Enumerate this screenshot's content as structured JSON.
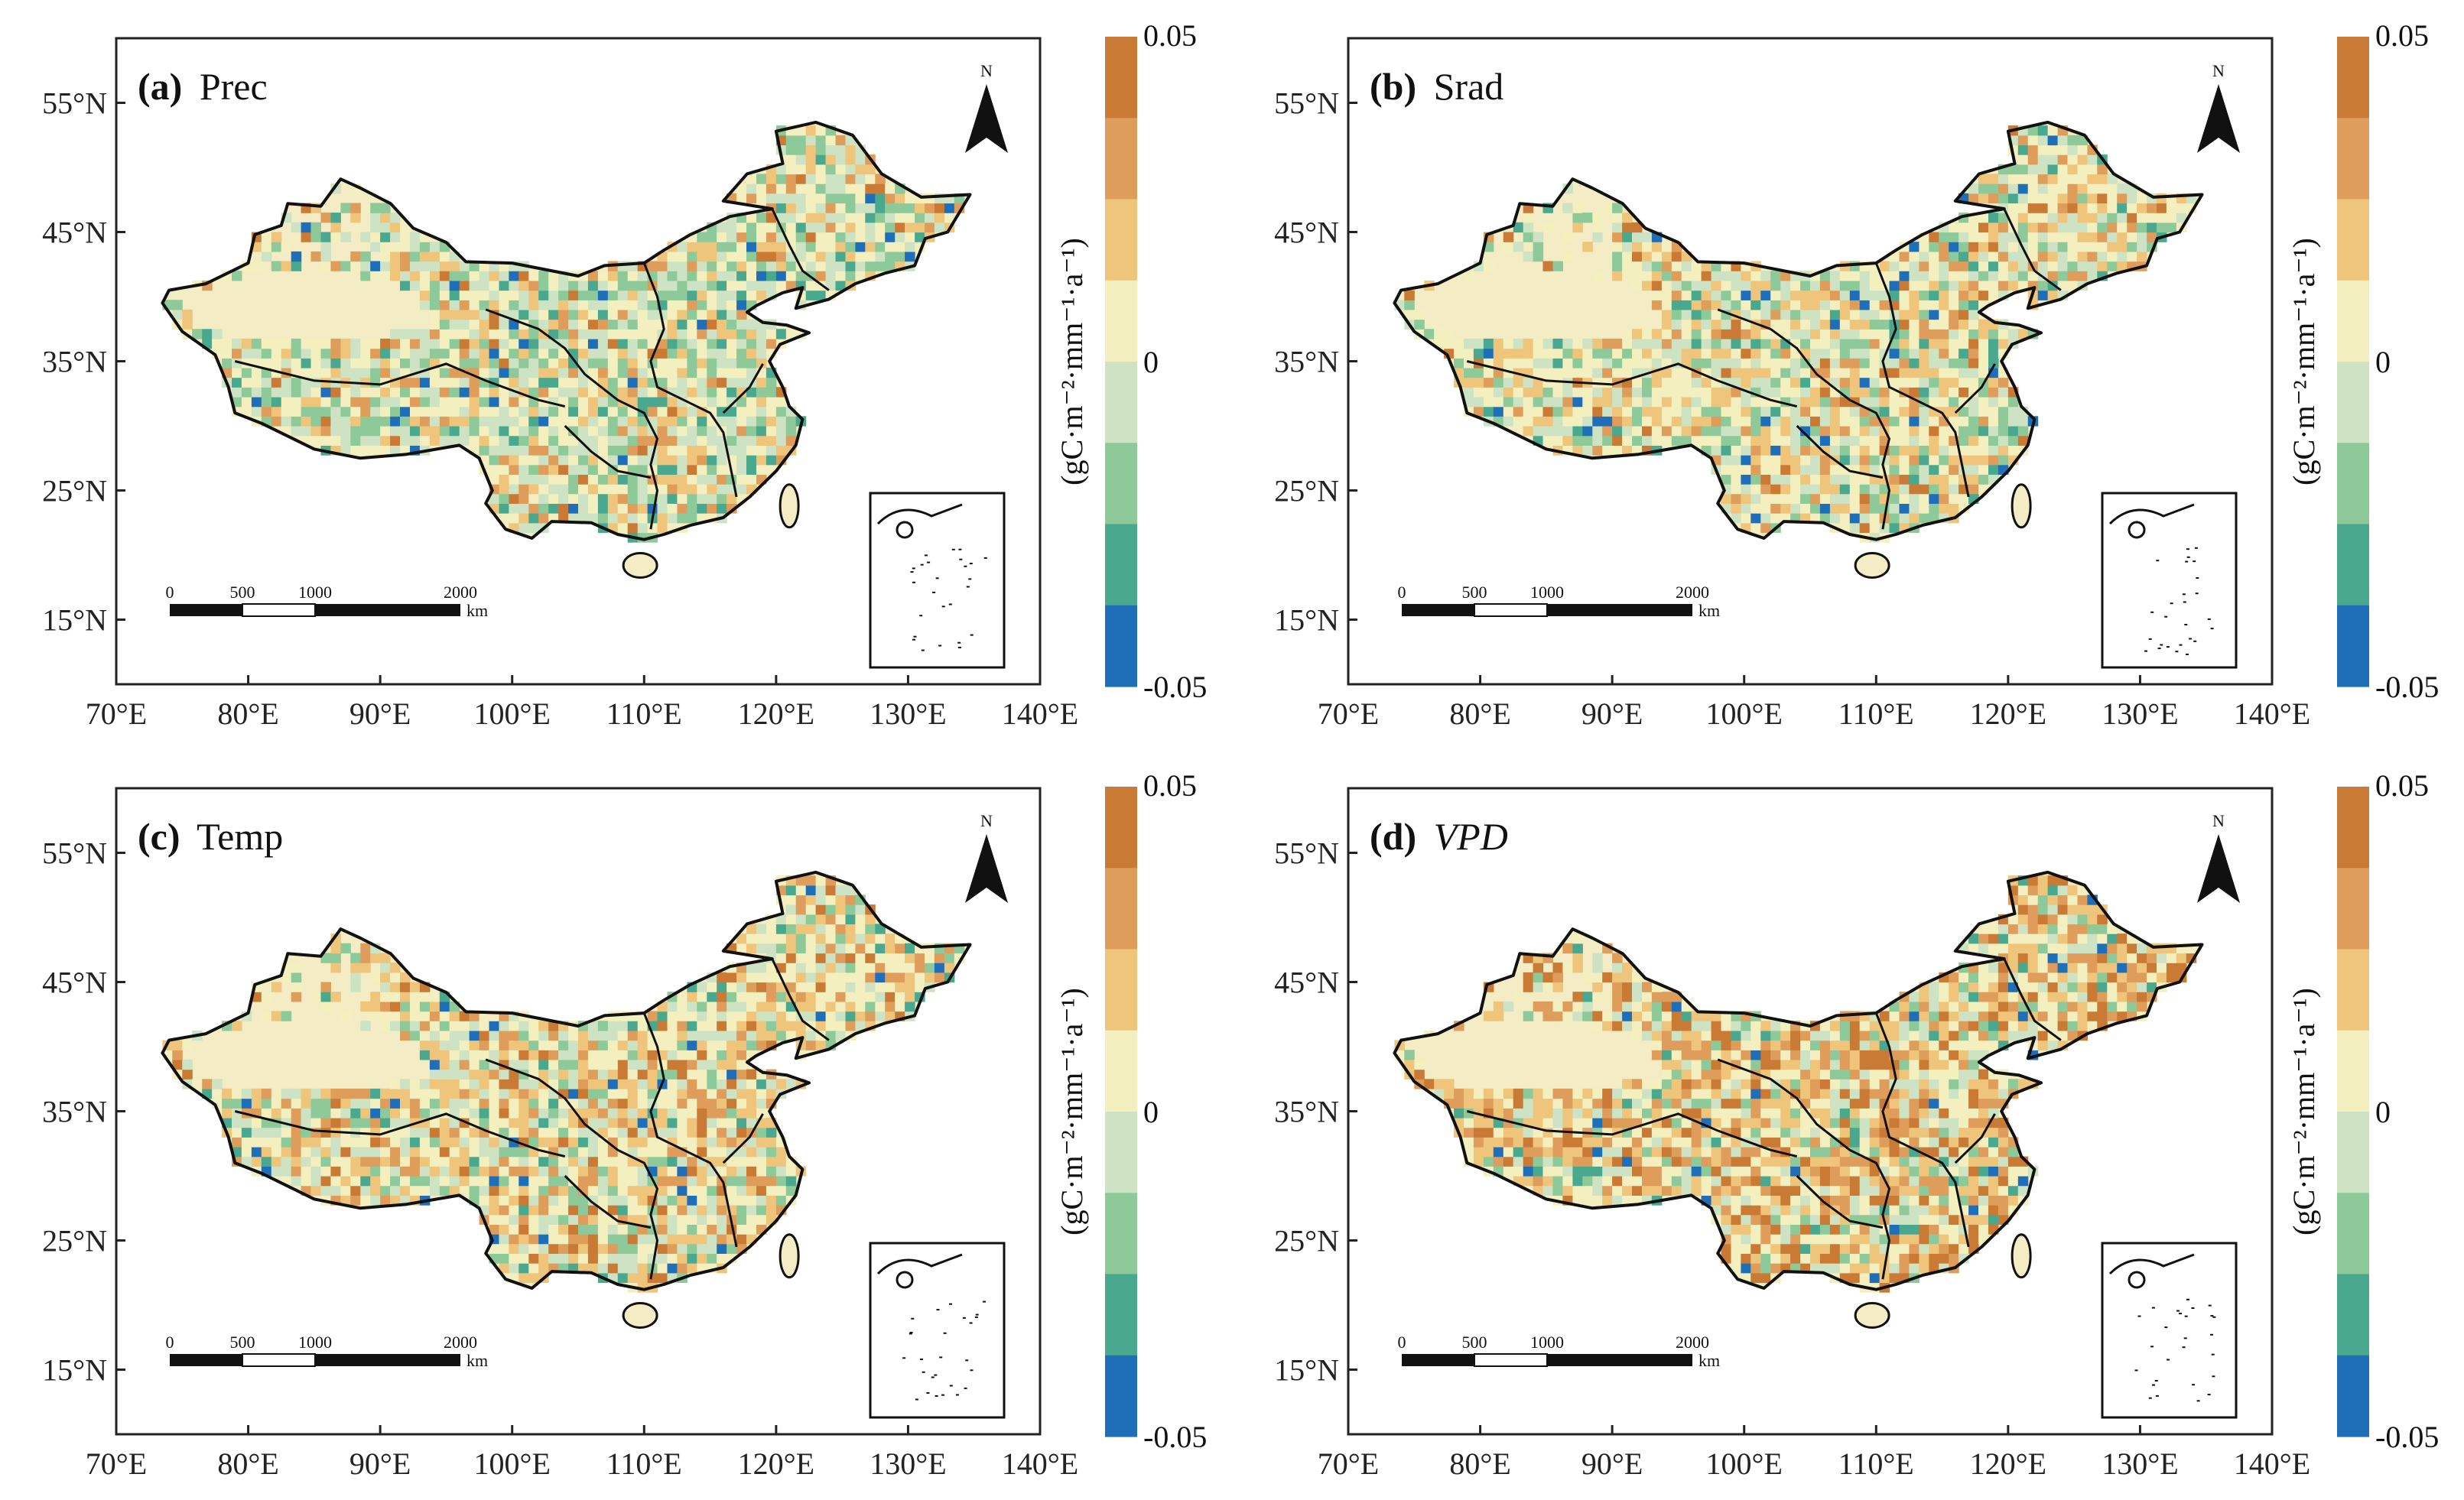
{
  "figure": {
    "colorbar": {
      "max_label": "0.05",
      "mid_label": "0",
      "min_label": "-0.05",
      "unit": "(gC·m⁻²·mm⁻¹·a⁻¹)",
      "colors": [
        "#1f6fb8",
        "#4aa88e",
        "#8ec99a",
        "#cde3c3",
        "#f4efbe",
        "#efc57c",
        "#df9d5c",
        "#c97b36"
      ]
    },
    "axes": {
      "x_ticks": [
        "70°E",
        "80°E",
        "90°E",
        "100°E",
        "110°E",
        "120°E",
        "130°E",
        "140°E"
      ],
      "y_ticks": [
        "55°N",
        "45°N",
        "35°N",
        "25°N",
        "15°N"
      ]
    },
    "scale_bar": {
      "labels": [
        "0",
        "500",
        "1000",
        "2000"
      ],
      "unit": "km"
    },
    "north_arrow": "N",
    "panels": [
      {
        "id": "a",
        "label": "(a)",
        "name": "Prec",
        "italic": false
      },
      {
        "id": "b",
        "label": "(b)",
        "name": "Srad",
        "italic": false
      },
      {
        "id": "c",
        "label": "(c)",
        "name": "Temp",
        "italic": false
      },
      {
        "id": "d",
        "label": "(d)",
        "name": "VPD",
        "italic": true
      }
    ]
  }
}
